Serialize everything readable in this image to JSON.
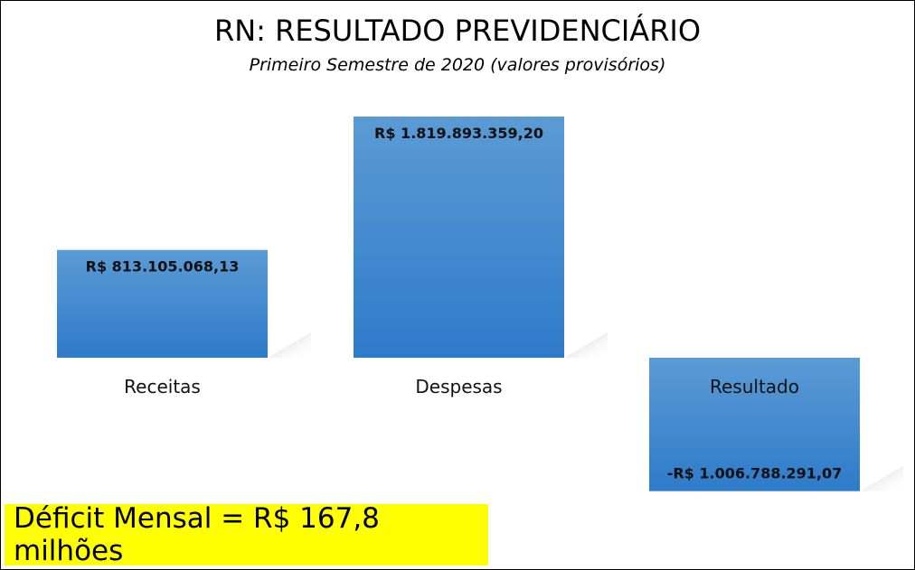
{
  "chart_data": {
    "type": "bar",
    "title": "RN: RESULTADO PREVIDENCIÁRIO",
    "subtitle": "Primeiro Semestre de 2020 (valores provisórios)",
    "categories": [
      "Receitas",
      "Despesas",
      "Resultado"
    ],
    "values": [
      813105068.13,
      1819893359.2,
      -1006788291.07
    ],
    "data_labels": [
      "R$ 813.105.068,13",
      "R$ 1.819.893.359,20",
      "-R$ 1.006.788.291,07"
    ],
    "xlabel": "",
    "ylabel": "",
    "ylim": [
      -1006788291.07,
      1819893359.2
    ],
    "grid": false,
    "legend": "none",
    "colors": {
      "bar_top": "#5b9bd5",
      "bar_bottom": "#2e7bca",
      "shadow": "#b8b8b8"
    }
  },
  "callout": {
    "text": "Déficit Mensal = R$ 167,8 milhões",
    "background": "#ffff00"
  }
}
